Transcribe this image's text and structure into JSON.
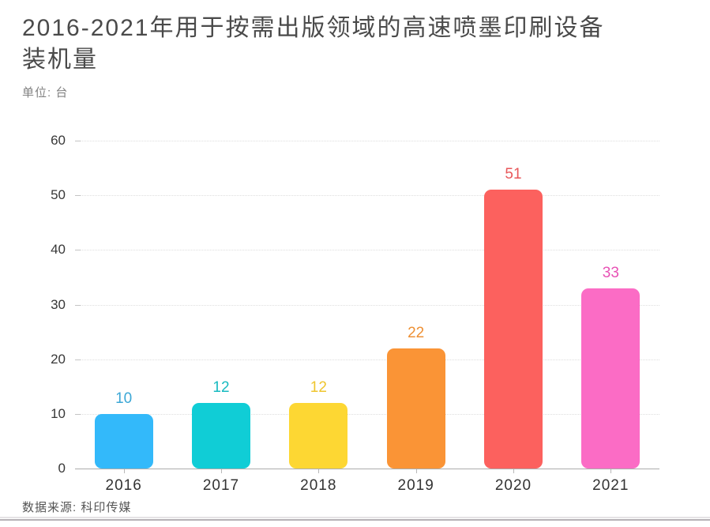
{
  "title": {
    "lines": [
      "2016-2021年用于按需出版领域的高速喷墨印刷设备",
      "装机量"
    ]
  },
  "unit_label": "单位: 台",
  "source_label": "数据来源: 科印传媒",
  "chart_data": {
    "type": "bar",
    "title": "2016-2021年用于按需出版领域的高速喷墨印刷设备装机量",
    "unit": "台",
    "categories": [
      "2016",
      "2017",
      "2018",
      "2019",
      "2020",
      "2021"
    ],
    "values": [
      10,
      12,
      12,
      22,
      51,
      33
    ],
    "bar_colors": [
      "#33B9FA",
      "#10CDD6",
      "#FDD733",
      "#FA9436",
      "#FC615E",
      "#FB6CC5"
    ],
    "value_label_colors": [
      "#3BA7D6",
      "#17BAC0",
      "#EFC52E",
      "#EE9034",
      "#E8575A",
      "#E851B5"
    ],
    "xlabel": "",
    "ylabel": "",
    "ylim": [
      0,
      60
    ],
    "yticks": [
      0,
      10,
      20,
      30,
      40,
      50,
      60
    ],
    "grid": "horizontal-dotted",
    "legend": "none",
    "source": "数据来源: 科印传媒"
  }
}
